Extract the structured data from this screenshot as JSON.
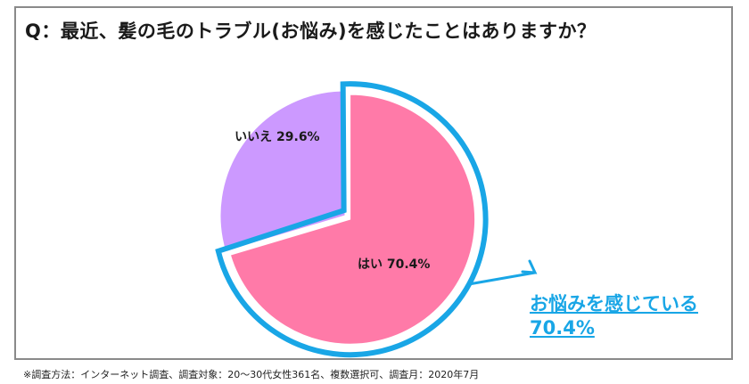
{
  "chart_data": {
    "type": "pie",
    "title": "Q：最近、髪の毛のトラブル(お悩み)を感じたことはありますか？",
    "slices": [
      {
        "label": "はい",
        "value": 70.4,
        "display": "はい  70.4%",
        "color": "#ff7aa8"
      },
      {
        "label": "いいえ",
        "value": 29.6,
        "display": "いいえ  29.6%",
        "color": "#cc99ff"
      }
    ],
    "highlight": {
      "line1": "お悩みを感じている",
      "line2": "70.4%",
      "color": "#19a6e6"
    },
    "legend": "none"
  },
  "footnote": "※調査方法：インターネット調査、調査対象：20～30代女性361名、複数選択可、調査月：2020年7月"
}
